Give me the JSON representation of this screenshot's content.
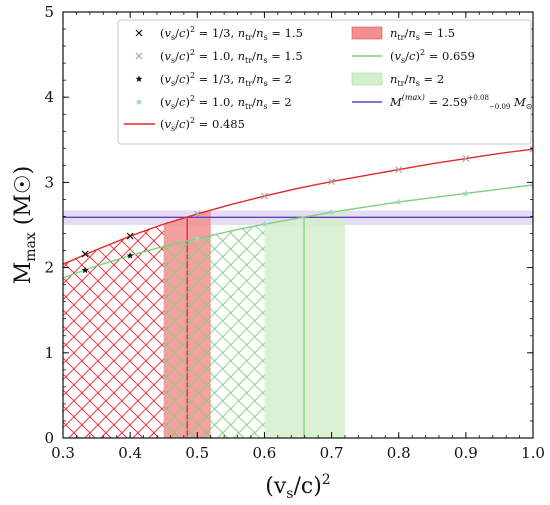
{
  "chart_data": {
    "type": "line",
    "xlabel": "(v_s/c)^2",
    "ylabel": "M_max (M_⊙)",
    "xlim": [
      0.3,
      1.0
    ],
    "ylim": [
      0,
      5
    ],
    "xticks": [
      0.3,
      0.4,
      0.5,
      0.6,
      0.7,
      0.8,
      0.9,
      1.0
    ],
    "yticks": [
      0,
      1,
      2,
      3,
      4,
      5
    ],
    "xtick_labels": [
      "0.3",
      "0.4",
      "0.5",
      "0.6",
      "0.7",
      "0.8",
      "0.9",
      "1.0"
    ],
    "ytick_labels": [
      "0",
      "1",
      "2",
      "3",
      "4",
      "5"
    ],
    "grid": false,
    "legend_position": "top-right",
    "series": [
      {
        "name": "(v_s/c)^2 = 1/3,  n_tr/n_s = 1.5",
        "kind": "marker",
        "marker": "x",
        "color": "#111111",
        "x": [
          0.333,
          0.4
        ],
        "y": [
          2.16,
          2.37
        ]
      },
      {
        "name": "(v_s/c)^2 = 1.0,  n_tr/n_s = 1.5",
        "kind": "marker",
        "marker": "x",
        "color": "#a8a8a8",
        "x": [
          0.5,
          0.6,
          0.7,
          0.8,
          0.9,
          1.0
        ],
        "y": [
          2.63,
          2.84,
          3.01,
          3.15,
          3.28,
          3.39
        ]
      },
      {
        "name": "(v_s/c)^2 = 1/3,  n_tr/n_s = 2",
        "kind": "marker",
        "marker": "star",
        "color": "#111111",
        "x": [
          0.333,
          0.4
        ],
        "y": [
          1.97,
          2.14
        ]
      },
      {
        "name": "(v_s/c)^2 = 1.0,  n_tr/n_s = 2",
        "kind": "marker",
        "marker": "star",
        "color": "#9fd8c0",
        "x": [
          0.5,
          0.6,
          0.7,
          0.8,
          0.9,
          1.0
        ],
        "y": [
          2.34,
          2.51,
          2.65,
          2.77,
          2.87,
          2.97
        ]
      },
      {
        "name": "(v_s/c)^2 = 0.485",
        "kind": "line",
        "color": "#e8262b",
        "x": [
          0.3,
          0.35,
          0.4,
          0.45,
          0.5,
          0.55,
          0.6,
          0.65,
          0.7,
          0.75,
          0.8,
          0.85,
          0.9,
          0.95,
          1.0
        ],
        "y": [
          2.04,
          2.21,
          2.37,
          2.51,
          2.63,
          2.74,
          2.84,
          2.93,
          3.01,
          3.08,
          3.15,
          3.22,
          3.28,
          3.34,
          3.39
        ]
      },
      {
        "name": "(v_s/c)^2 = 0.659",
        "kind": "line",
        "color": "#7ed17e",
        "x": [
          0.3,
          0.35,
          0.4,
          0.45,
          0.5,
          0.55,
          0.6,
          0.65,
          0.7,
          0.75,
          0.8,
          0.85,
          0.9,
          0.95,
          1.0
        ],
        "y": [
          1.88,
          2.02,
          2.14,
          2.25,
          2.34,
          2.43,
          2.51,
          2.58,
          2.65,
          2.71,
          2.77,
          2.82,
          2.87,
          2.92,
          2.97
        ]
      },
      {
        "name": "M^(max) = 2.59 +0.08 −0.09 M_⊙",
        "kind": "hline",
        "color": "#6a40c0",
        "y": 2.59,
        "band": [
          2.5,
          2.67
        ],
        "band_color": "#d9cfee"
      }
    ],
    "bands": [
      {
        "name": "n_tr/n_s = 1.5",
        "x": [
          0.45,
          0.52
        ],
        "color": "#f28f8f",
        "line_at": 0.485,
        "line_color": "#d92024",
        "top_curve": "(v_s/c)^2 = 0.485"
      },
      {
        "name": "n_tr/n_s = 2",
        "x": [
          0.6,
          0.72
        ],
        "color": "#d3efcd",
        "line_at": 0.659,
        "line_color": "#7ed17e",
        "top_curve": "(v_s/c)^2 = 0.659"
      }
    ],
    "hatches": [
      {
        "series": "(v_s/c)^2 = 0.485",
        "x": [
          0.3,
          0.45
        ],
        "color": "#e8262b"
      },
      {
        "series": "(v_s/c)^2 = 0.659",
        "x": [
          0.45,
          0.6
        ],
        "color": "#7ed17e"
      }
    ]
  }
}
